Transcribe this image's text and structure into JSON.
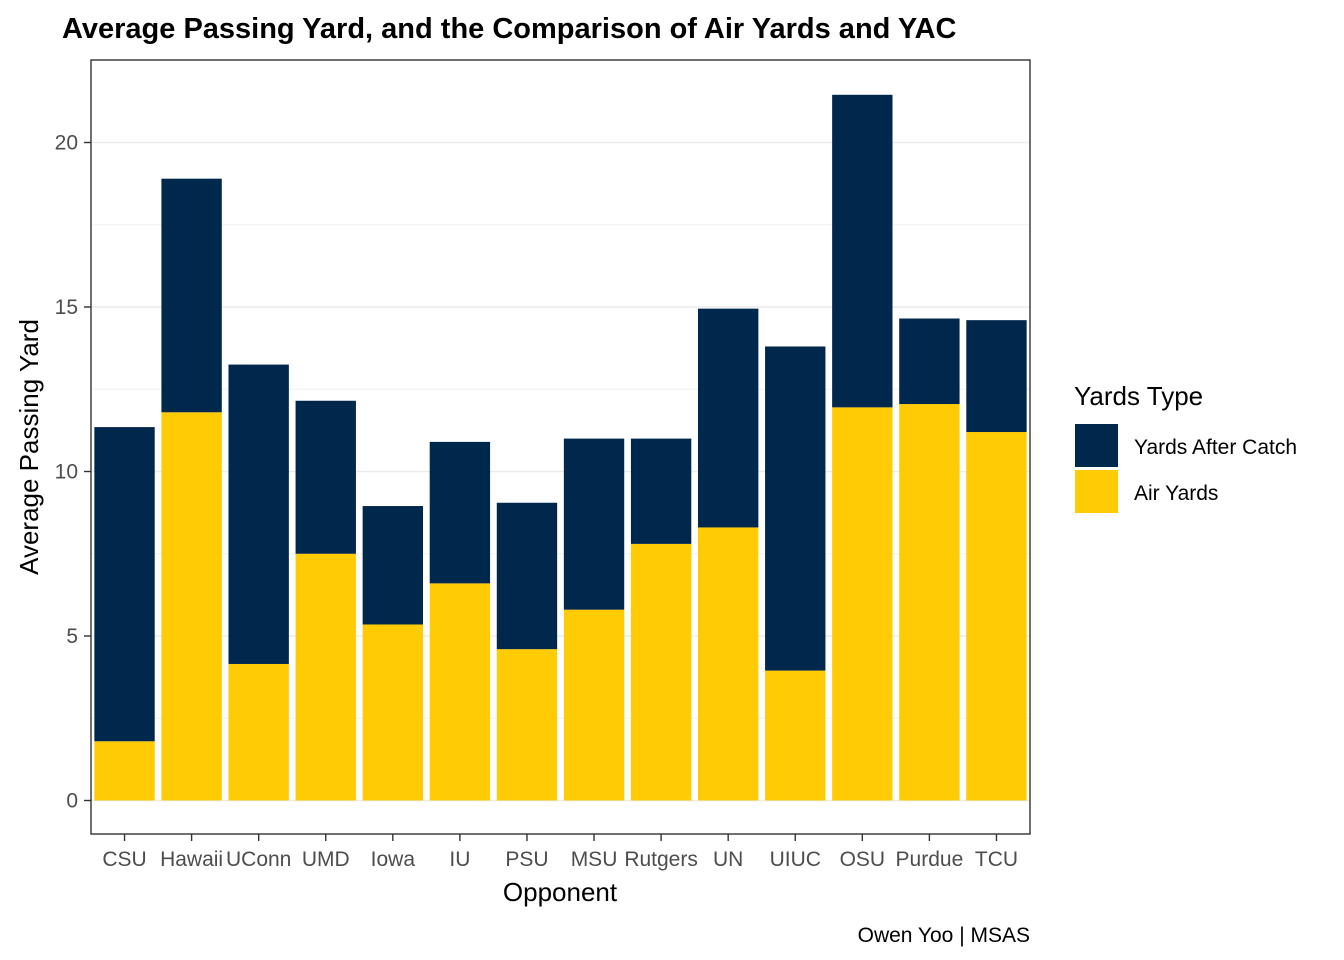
{
  "chart_data": {
    "type": "bar",
    "stacked": true,
    "title": "Average Passing Yard, and the Comparison of Air Yards and YAC",
    "xlabel": "Opponent",
    "ylabel": "Average Passing Yard",
    "caption": "Owen Yoo | MSAS",
    "categories": [
      "CSU",
      "Hawaii",
      "UConn",
      "UMD",
      "Iowa",
      "IU",
      "PSU",
      "MSU",
      "Rutgers",
      "UN",
      "UIUC",
      "OSU",
      "Purdue",
      "TCU"
    ],
    "ylim": [
      0,
      22
    ],
    "yticks": [
      0,
      5,
      10,
      15,
      20
    ],
    "grid": true,
    "legend": {
      "title": "Yards Type",
      "position": "right",
      "entries": [
        "Yards After Catch",
        "Air Yards"
      ]
    },
    "series": [
      {
        "name": "Air Yards",
        "color": "#FFCB05",
        "values": [
          1.8,
          11.8,
          4.15,
          7.5,
          5.35,
          6.6,
          4.6,
          5.8,
          7.8,
          8.3,
          3.95,
          11.95,
          12.05,
          11.2
        ]
      },
      {
        "name": "Yards After Catch",
        "color": "#00274C",
        "values": [
          9.55,
          7.1,
          9.1,
          4.65,
          3.6,
          4.3,
          4.45,
          5.2,
          3.2,
          6.65,
          9.85,
          9.5,
          2.6,
          3.4
        ]
      }
    ]
  }
}
